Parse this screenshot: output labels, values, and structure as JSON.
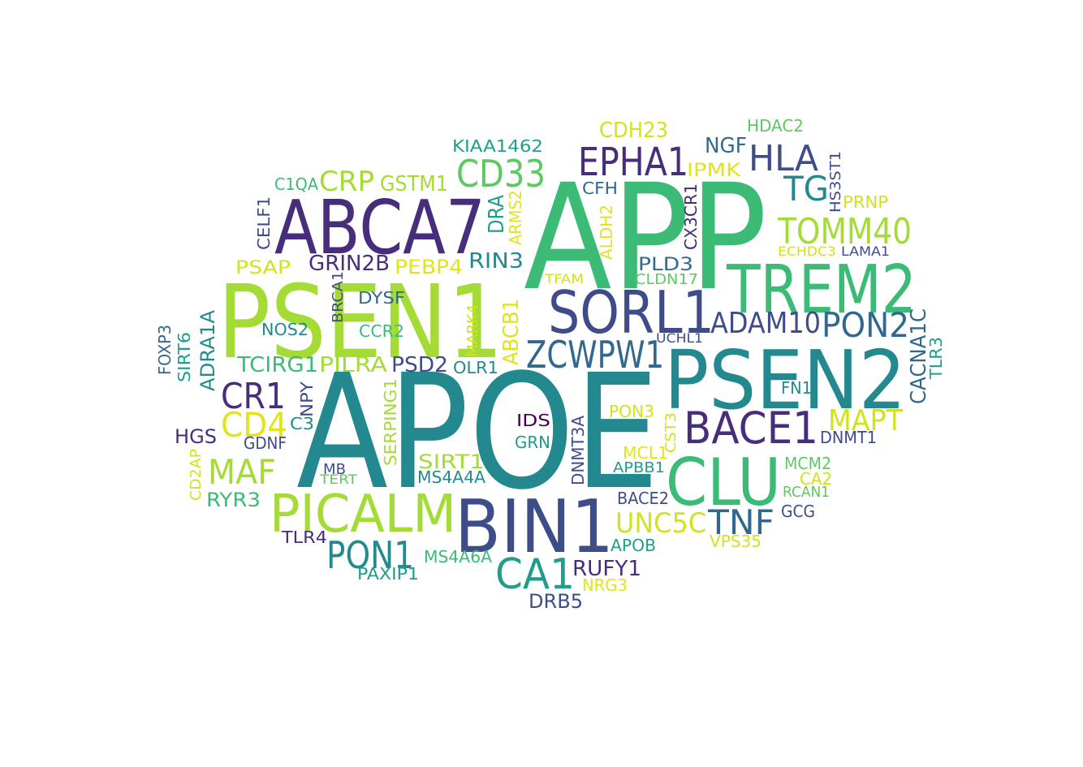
{
  "words": [
    {
      "text": "APOE",
      "color": "#23898e"
    },
    {
      "text": "APP",
      "color": "#3bbb75"
    },
    {
      "text": "PSEN1",
      "color": "#a5db36"
    },
    {
      "text": "PSEN2",
      "color": "#23898e"
    },
    {
      "text": "ABCA7",
      "color": "#472d7b"
    },
    {
      "text": "BIN1",
      "color": "#3e4c8a"
    },
    {
      "text": "TREM2",
      "color": "#3bbb75"
    },
    {
      "text": "CLU",
      "color": "#3bbb75"
    },
    {
      "text": "SORL1",
      "color": "#3e4c8a"
    },
    {
      "text": "PICALM",
      "color": "#a5db36"
    },
    {
      "text": "BACE1",
      "color": "#472d7b"
    },
    {
      "text": "EPHA1",
      "color": "#472d7b"
    },
    {
      "text": "ZCWPW1",
      "color": "#31688e"
    },
    {
      "text": "TOMM40",
      "color": "#a5db36"
    },
    {
      "text": "CD33",
      "color": "#5ec962"
    },
    {
      "text": "CA1",
      "color": "#1f9e89"
    },
    {
      "text": "PON1",
      "color": "#23898e"
    },
    {
      "text": "PON2",
      "color": "#31688e"
    },
    {
      "text": "HLA",
      "color": "#3e4c8a"
    },
    {
      "text": "CR1",
      "color": "#472d7b"
    },
    {
      "text": "MAF",
      "color": "#a5db36"
    },
    {
      "text": "CD4",
      "color": "#e2e418"
    },
    {
      "text": "TNF",
      "color": "#31688e"
    },
    {
      "text": "ADAM10",
      "color": "#3e4c8a"
    },
    {
      "text": "MAPT",
      "color": "#d2e21b"
    },
    {
      "text": "UNC5C",
      "color": "#d2e21b"
    },
    {
      "text": "TG",
      "color": "#23898e"
    },
    {
      "text": "CRP",
      "color": "#a5db36"
    },
    {
      "text": "GSTM1",
      "color": "#a5db36"
    },
    {
      "text": "GRIN2B",
      "color": "#472d7b"
    },
    {
      "text": "PEBP4",
      "color": "#e2e418"
    },
    {
      "text": "RIN3",
      "color": "#23898e"
    },
    {
      "text": "TCIRG1",
      "color": "#3bbb75"
    },
    {
      "text": "PILRA",
      "color": "#a5db36"
    },
    {
      "text": "PSD2",
      "color": "#3e4c8a"
    },
    {
      "text": "CDH23",
      "color": "#d2e21b"
    },
    {
      "text": "NGF",
      "color": "#31688e"
    },
    {
      "text": "HDAC2",
      "color": "#5ec962"
    },
    {
      "text": "KIAA1462",
      "color": "#1f9e89"
    },
    {
      "text": "IPMK",
      "color": "#e2e418"
    },
    {
      "text": "CFH",
      "color": "#31688e"
    },
    {
      "text": "PLD3",
      "color": "#31688e"
    },
    {
      "text": "CLDN17",
      "color": "#5ec962"
    },
    {
      "text": "TFAM",
      "color": "#d2e21b"
    },
    {
      "text": "ECHDC3",
      "color": "#d2e21b"
    },
    {
      "text": "LAMA1",
      "color": "#3e4c8a"
    },
    {
      "text": "PRNP",
      "color": "#d2e21b"
    },
    {
      "text": "PSAP",
      "color": "#d2e21b"
    },
    {
      "text": "C1QA",
      "color": "#3bbb75"
    },
    {
      "text": "DYSF",
      "color": "#31688e"
    },
    {
      "text": "NOS2",
      "color": "#23898e"
    },
    {
      "text": "CCR2",
      "color": "#3bbb75"
    },
    {
      "text": "OLR1",
      "color": "#23898e"
    },
    {
      "text": "HGS",
      "color": "#472d7b"
    },
    {
      "text": "GDNF",
      "color": "#3e4c8a"
    },
    {
      "text": "C3",
      "color": "#23898e"
    },
    {
      "text": "IDS",
      "color": "#440154"
    },
    {
      "text": "GRN",
      "color": "#1f9e89"
    },
    {
      "text": "PON3",
      "color": "#d2e21b"
    },
    {
      "text": "FN1",
      "color": "#23898e"
    },
    {
      "text": "MCL1",
      "color": "#e2e418"
    },
    {
      "text": "APBB1",
      "color": "#1f9e89"
    },
    {
      "text": "DNMT1",
      "color": "#3e4c8a"
    },
    {
      "text": "MCM2",
      "color": "#5ec962"
    },
    {
      "text": "CA2",
      "color": "#d2e21b"
    },
    {
      "text": "RCAN1",
      "color": "#5ec962"
    },
    {
      "text": "GCG",
      "color": "#3e4c8a"
    },
    {
      "text": "BACE2",
      "color": "#3e4c8a"
    },
    {
      "text": "APOB",
      "color": "#1f9e89"
    },
    {
      "text": "VPS35",
      "color": "#d2e21b"
    },
    {
      "text": "RYR3",
      "color": "#3bbb75"
    },
    {
      "text": "MB",
      "color": "#3e4c8a"
    },
    {
      "text": "TERT",
      "color": "#5ec962"
    },
    {
      "text": "SIRT1",
      "color": "#a5db36"
    },
    {
      "text": "MS4A4A",
      "color": "#23898e"
    },
    {
      "text": "TLR4",
      "color": "#472d7b"
    },
    {
      "text": "MS4A6A",
      "color": "#3bbb75"
    },
    {
      "text": "PAXIP1",
      "color": "#1f9e89"
    },
    {
      "text": "RUFY1",
      "color": "#472d7b"
    },
    {
      "text": "NRG3",
      "color": "#e2e418"
    },
    {
      "text": "DRB5",
      "color": "#3e4c8a"
    },
    {
      "text": "UCHL1",
      "color": "#3e4c8a"
    },
    {
      "text": "CELF1",
      "color": "#3e4c8a"
    },
    {
      "text": "DRA",
      "color": "#1f9e89"
    },
    {
      "text": "ARMS2",
      "color": "#e2e418"
    },
    {
      "text": "ALDH2",
      "color": "#e2e418"
    },
    {
      "text": "CX3CR1",
      "color": "#472d7b"
    },
    {
      "text": "HS3ST1",
      "color": "#3e4c8a"
    },
    {
      "text": "BRCA1",
      "color": "#3e4c8a"
    },
    {
      "text": "MARK4",
      "color": "#d2e21b"
    },
    {
      "text": "ABCB1",
      "color": "#e2e418"
    },
    {
      "text": "CACNA1C",
      "color": "#31688e"
    },
    {
      "text": "TLR3",
      "color": "#1f9e89"
    },
    {
      "text": "FOXP3",
      "color": "#31688e"
    },
    {
      "text": "SIRT6",
      "color": "#1f9e89"
    },
    {
      "text": "ADRA1A",
      "color": "#23898e"
    },
    {
      "text": "NPY",
      "color": "#3e4c8a"
    },
    {
      "text": "SERPING1",
      "color": "#a5db36"
    },
    {
      "text": "DNMT3A",
      "color": "#3e4c8a"
    },
    {
      "text": "CST3",
      "color": "#d2e21b"
    },
    {
      "text": "CD2AP",
      "color": "#d2e21b"
    }
  ]
}
